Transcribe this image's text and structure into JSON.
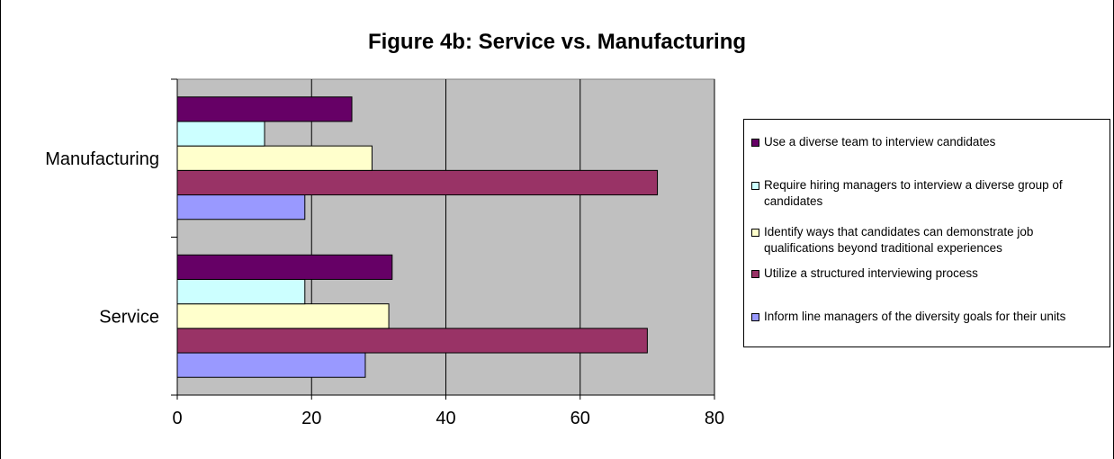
{
  "chart_data": {
    "type": "bar",
    "orientation": "horizontal",
    "title": "Figure 4b: Service vs. Manufacturing",
    "categories": [
      "Service",
      "Manufacturing"
    ],
    "xlim": [
      0,
      80
    ],
    "xticks": [
      0,
      20,
      40,
      60,
      80
    ],
    "grid": true,
    "legend_position": "right",
    "series": [
      {
        "name": "Inform line managers of the diversity goals for their units",
        "values": [
          28,
          19
        ],
        "color": "#9999ff"
      },
      {
        "name": "Utilize a structured interviewing process",
        "values": [
          70,
          71.5
        ],
        "color": "#993366"
      },
      {
        "name": "Identify ways that candidates can demonstrate job qualifications beyond traditional experiences",
        "values": [
          31.5,
          29
        ],
        "color": "#ffffcc"
      },
      {
        "name": "Require hiring managers to interview a diverse group of candidates",
        "values": [
          19,
          13
        ],
        "color": "#ccffff"
      },
      {
        "name": "Use a diverse team to interview candidates",
        "values": [
          32,
          26
        ],
        "color": "#660066"
      }
    ],
    "plot_background": "#c0c0c0",
    "legend_order": [
      4,
      3,
      2,
      1,
      0
    ]
  }
}
